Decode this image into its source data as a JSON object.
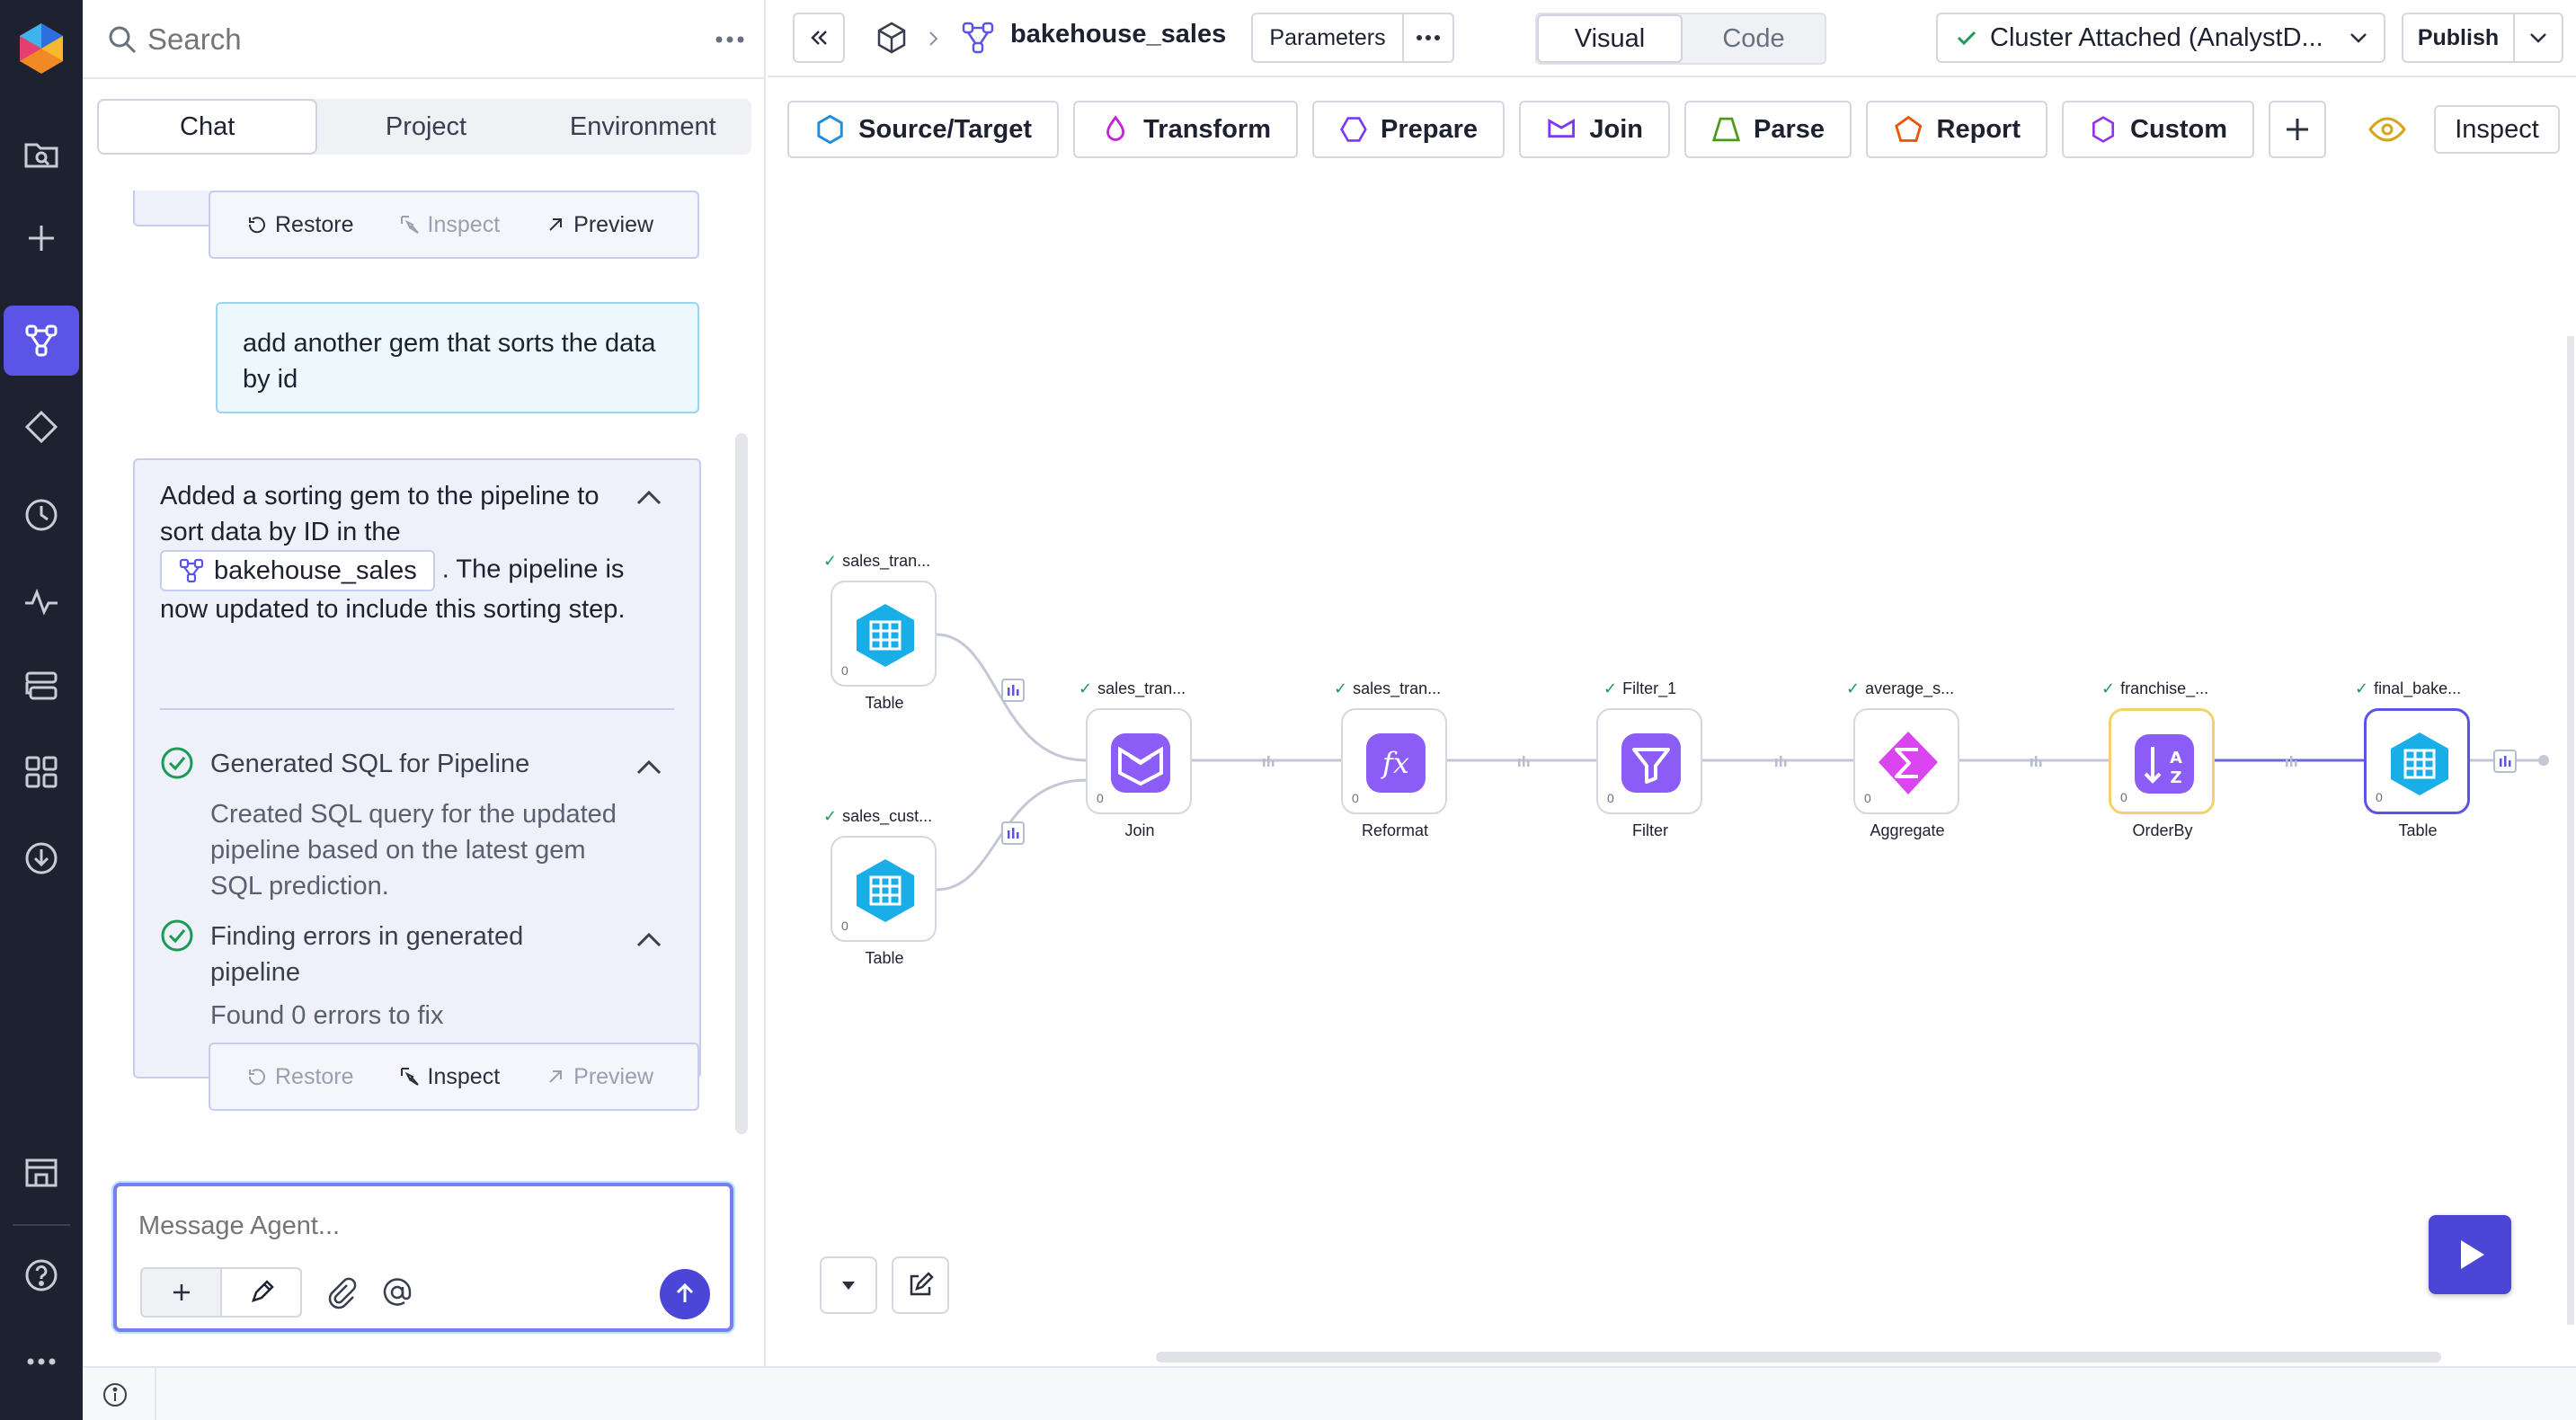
{
  "colors": {
    "rail_bg": "#1d2130",
    "accent": "#5b54e6",
    "success": "#1a9b55",
    "gem_blue": "#1aaee8",
    "gem_purple": "#8b5cf6",
    "gem_pink": "#d946ef"
  },
  "rail": {
    "icons": [
      "logo-icon",
      "browse-icon",
      "plus-icon",
      "pipeline-icon",
      "gem-icon",
      "history-icon",
      "activity-icon",
      "deploy-icon",
      "apps-icon",
      "download-icon",
      "marketplace-icon",
      "help-icon",
      "more-icon"
    ]
  },
  "sidebar": {
    "search_placeholder": "Search",
    "tabs": [
      {
        "label": "Chat"
      },
      {
        "label": "Project"
      },
      {
        "label": "Environment"
      }
    ]
  },
  "chat": {
    "top_actions": {
      "restore": "Restore",
      "inspect": "Inspect",
      "preview": "Preview"
    },
    "user_message": "add another gem that sorts the data by id",
    "agent": {
      "text_before": "Added a sorting gem to the pipeline to sort data by ID in the",
      "pipeline_pill": "bakehouse_sales",
      "text_after": ". The pipeline is now updated to include this sorting step.",
      "steps": [
        {
          "title": "Generated SQL for Pipeline",
          "desc": "Created SQL query for the updated pipeline based on the latest gem SQL prediction."
        },
        {
          "title": "Finding errors in generated pipeline",
          "desc": "Found 0 errors to fix"
        }
      ],
      "actions": {
        "restore": "Restore",
        "inspect": "Inspect",
        "preview": "Preview"
      }
    },
    "composer_placeholder": "Message Agent..."
  },
  "header": {
    "pipeline_name": "bakehouse_sales",
    "parameters": "Parameters",
    "view_visual": "Visual",
    "view_code": "Code",
    "cluster": "Cluster Attached (AnalystD...",
    "publish": "Publish"
  },
  "toolbar": {
    "gems": [
      "Source/Target",
      "Transform",
      "Prepare",
      "Join",
      "Parse",
      "Report",
      "Custom"
    ],
    "inspect": "Inspect"
  },
  "canvas": {
    "gems": [
      {
        "top": "sales_tran...",
        "type": "Table",
        "count": "0"
      },
      {
        "top": "sales_cust...",
        "type": "Table",
        "count": "0"
      },
      {
        "top": "sales_tran...",
        "type": "Join",
        "count": "0"
      },
      {
        "top": "sales_tran...",
        "type": "Reformat",
        "count": "0"
      },
      {
        "top": "Filter_1",
        "type": "Filter",
        "count": "0"
      },
      {
        "top": "average_s...",
        "type": "Aggregate",
        "count": "0"
      },
      {
        "top": "franchise_...",
        "type": "OrderBy",
        "count": "0"
      },
      {
        "top": "final_bake...",
        "type": "Table",
        "count": "0"
      }
    ]
  }
}
